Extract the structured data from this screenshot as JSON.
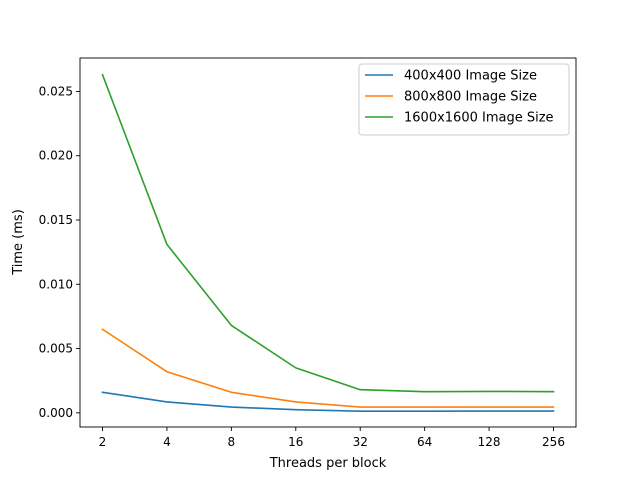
{
  "chart_data": {
    "type": "line",
    "title": "",
    "xlabel": "Threads per block",
    "ylabel": "Time (ms)",
    "x": [
      "2",
      "4",
      "8",
      "16",
      "32",
      "64",
      "128",
      "256"
    ],
    "x_scale": "log2",
    "ylim": [
      -0.0011,
      0.0276
    ],
    "yticks": [
      "0.000",
      "0.005",
      "0.010",
      "0.015",
      "0.020",
      "0.025"
    ],
    "ytick_values": [
      0,
      0.005,
      0.01,
      0.015,
      0.02,
      0.025
    ],
    "grid": false,
    "legend_position": "top-right",
    "series": [
      {
        "name": "400x400 Image Size",
        "color": "#1f77b4",
        "values": [
          0.0016,
          0.00085,
          0.00045,
          0.00025,
          0.00013,
          0.00013,
          0.00014,
          0.00014
        ]
      },
      {
        "name": "800x800 Image Size",
        "color": "#ff7f0e",
        "values": [
          0.0065,
          0.0032,
          0.0016,
          0.00085,
          0.00045,
          0.00045,
          0.00045,
          0.00045
        ]
      },
      {
        "name": "1600x1600 Image Size",
        "color": "#2ca02c",
        "values": [
          0.0263,
          0.0131,
          0.0068,
          0.0035,
          0.0018,
          0.00165,
          0.00167,
          0.00165
        ]
      }
    ]
  }
}
